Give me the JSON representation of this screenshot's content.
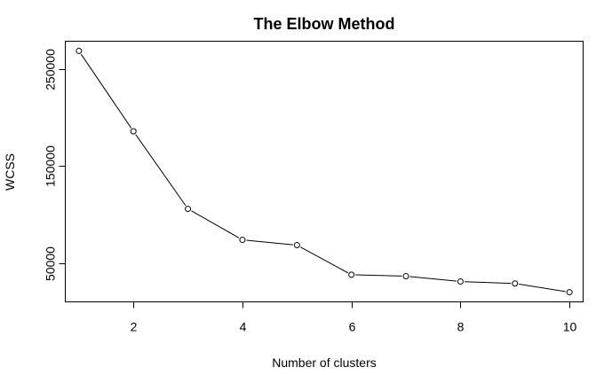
{
  "chart_data": {
    "type": "line",
    "title": "The Elbow Method",
    "xlabel": "Number of clusters",
    "ylabel": "WCSS",
    "x": [
      1,
      2,
      3,
      4,
      5,
      6,
      7,
      8,
      9,
      10
    ],
    "series": [
      {
        "values": [
          269000,
          186000,
          106000,
          74000,
          68500,
          38000,
          36500,
          31000,
          29000,
          20000
        ],
        "marker": "open-circle",
        "color": "#000000"
      }
    ],
    "xlim": [
      0.75,
      10.25
    ],
    "ylim": [
      10000,
      279000
    ],
    "xticks": [
      2,
      4,
      6,
      8,
      10
    ],
    "yticks": [
      50000,
      150000,
      250000
    ],
    "xtick_labels": [
      "2",
      "4",
      "6",
      "8",
      "10"
    ],
    "ytick_labels": [
      "50000",
      "150000",
      "250000"
    ],
    "grid": false,
    "legend": "none"
  }
}
